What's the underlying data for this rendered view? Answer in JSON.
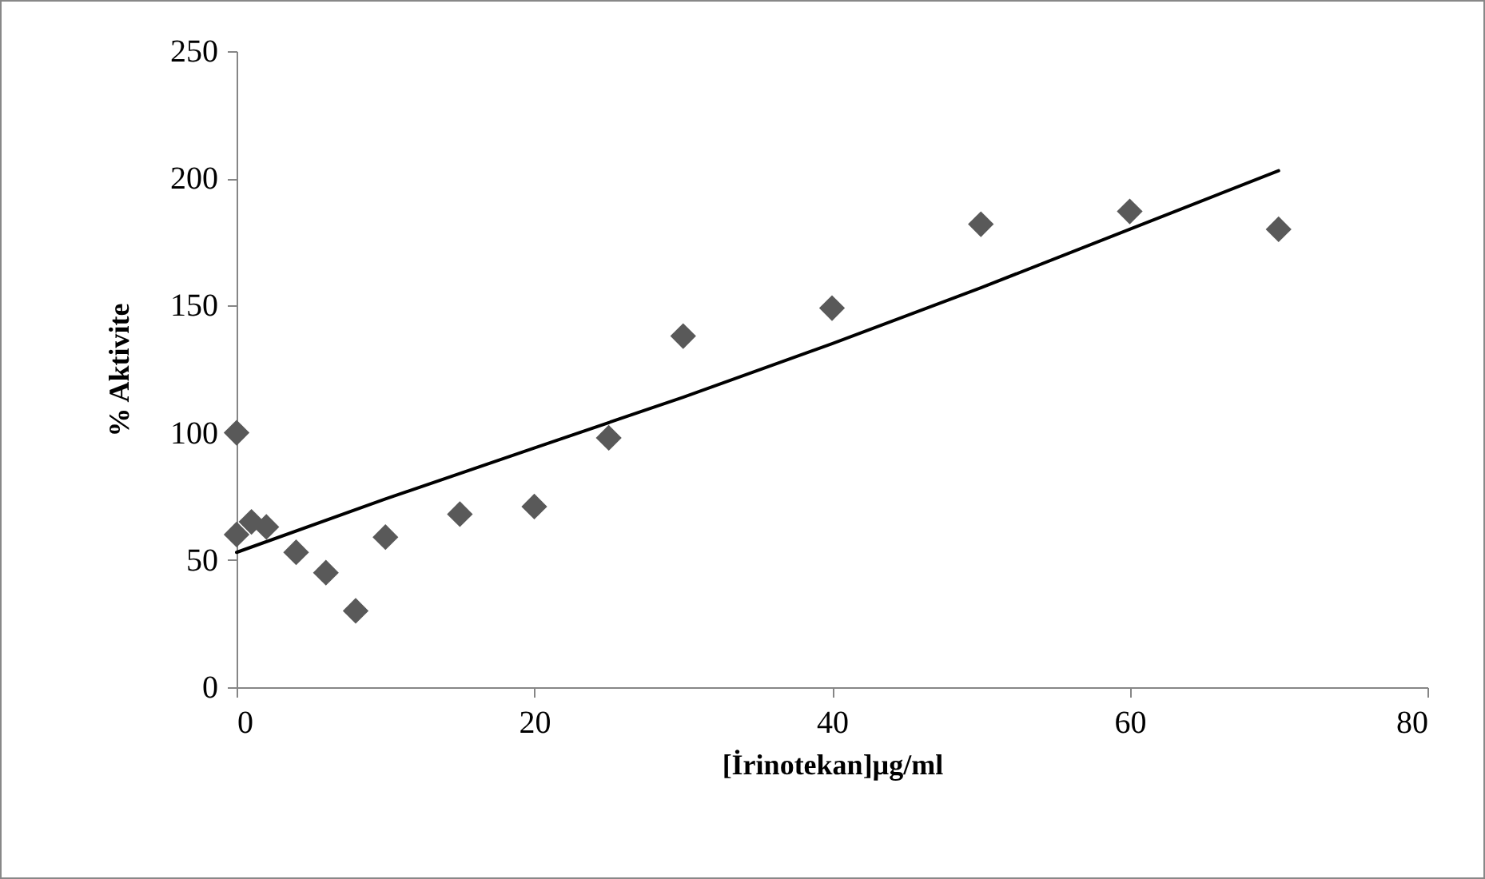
{
  "chart_data": {
    "type": "scatter",
    "xlabel": "[İrinotekan]µg/ml",
    "ylabel": "%  Aktivite",
    "xlim": [
      0,
      80
    ],
    "xticks": [
      0,
      20,
      40,
      60,
      80
    ],
    "ylim": [
      0,
      250
    ],
    "yticks": [
      0,
      50,
      100,
      150,
      200,
      250
    ],
    "grid": false,
    "series": [
      {
        "marker": "diamond",
        "color": "#595959",
        "x": [
          0,
          0,
          1,
          2,
          4,
          6,
          8,
          10,
          15,
          20,
          25,
          30,
          40,
          50,
          60,
          70
        ],
        "values": [
          100,
          60,
          65,
          63,
          53,
          45,
          30,
          59,
          68,
          71,
          98,
          138,
          149,
          182,
          187,
          180
        ]
      },
      {
        "type": "line",
        "color": "#000000",
        "x": [
          0,
          10,
          20,
          30,
          40,
          50,
          60,
          70
        ],
        "values": [
          53,
          74,
          94,
          114,
          135,
          157,
          180,
          203
        ]
      }
    ]
  }
}
